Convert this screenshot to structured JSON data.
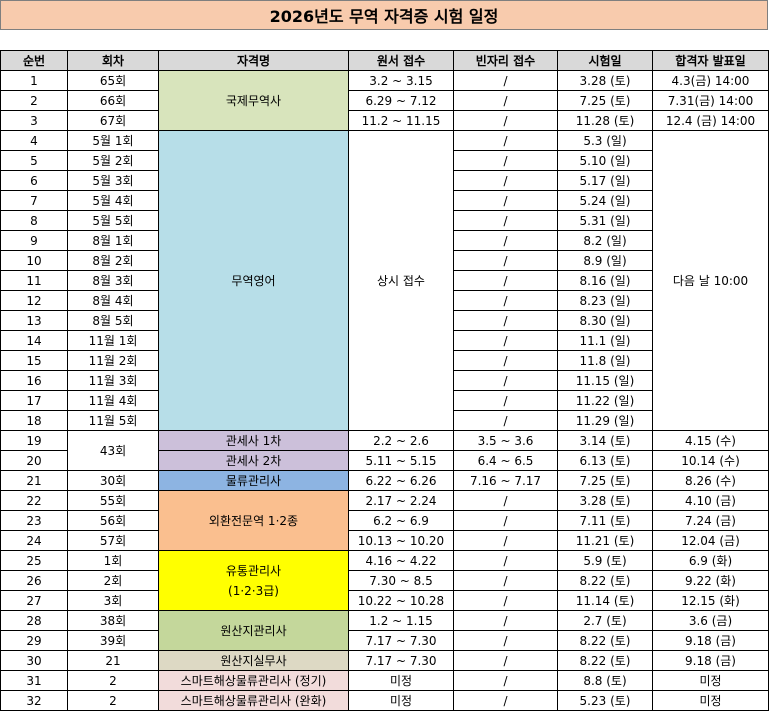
{
  "title": "2026년도 무역 자격증 시험 일정",
  "headers": [
    "순번",
    "회차",
    "자격명",
    "원서 접수",
    "빈자리 접수",
    "시험일",
    "합격자 발표일"
  ],
  "colors": {
    "title_bg": "#f8cbad",
    "header_bg": "#d9d9d9",
    "intl": "#d8e4bc",
    "english": "#b7dee8",
    "customs": "#ccc0da",
    "logistics": "#8db4e2",
    "fx": "#fabf8f",
    "distribution": "#ffff00",
    "origin": "#c4d79b",
    "origin_practical": "#ddd9c4",
    "smart": "#f2dcdb"
  },
  "rows": [
    {
      "no": "1",
      "round": "65회",
      "apply": "3.2 ~ 3.15",
      "vacancy": "/",
      "exam": "3.28 (토)",
      "result": "4.3(금) 14:00"
    },
    {
      "no": "2",
      "round": "66회",
      "apply": "6.29 ~ 7.12",
      "vacancy": "/",
      "exam": "7.25 (토)",
      "result": "7.31(금) 14:00"
    },
    {
      "no": "3",
      "round": "67회",
      "apply": "11.2 ~ 11.15",
      "vacancy": "/",
      "exam": "11.28 (토)",
      "result": "12.4 (금) 14:00"
    },
    {
      "no": "4",
      "round": "5월 1회",
      "vacancy": "/",
      "exam": "5.3 (일)"
    },
    {
      "no": "5",
      "round": "5월 2회",
      "vacancy": "/",
      "exam": "5.10 (일)"
    },
    {
      "no": "6",
      "round": "5월 3회",
      "vacancy": "/",
      "exam": "5.17 (일)"
    },
    {
      "no": "7",
      "round": "5월 4회",
      "vacancy": "/",
      "exam": "5.24 (일)"
    },
    {
      "no": "8",
      "round": "5월 5회",
      "vacancy": "/",
      "exam": "5.31 (일)"
    },
    {
      "no": "9",
      "round": "8월 1회",
      "vacancy": "/",
      "exam": "8.2 (일)"
    },
    {
      "no": "10",
      "round": "8월 2회",
      "vacancy": "/",
      "exam": "8.9 (일)"
    },
    {
      "no": "11",
      "round": "8월 3회",
      "vacancy": "/",
      "exam": "8.16 (일)"
    },
    {
      "no": "12",
      "round": "8월 4회",
      "vacancy": "/",
      "exam": "8.23 (일)"
    },
    {
      "no": "13",
      "round": "8월 5회",
      "vacancy": "/",
      "exam": "8.30 (일)"
    },
    {
      "no": "14",
      "round": "11월 1회",
      "vacancy": "/",
      "exam": "11.1 (일)"
    },
    {
      "no": "15",
      "round": "11월 2회",
      "vacancy": "/",
      "exam": "11.8 (일)"
    },
    {
      "no": "16",
      "round": "11월 3회",
      "vacancy": "/",
      "exam": "11.15 (일)"
    },
    {
      "no": "17",
      "round": "11월 4회",
      "vacancy": "/",
      "exam": "11.22 (일)"
    },
    {
      "no": "18",
      "round": "11월 5회",
      "vacancy": "/",
      "exam": "11.29 (일)"
    },
    {
      "no": "19",
      "apply": "2.2 ~ 2.6",
      "vacancy": "3.5 ~ 3.6",
      "exam": "3.14 (토)",
      "result": "4.15 (수)"
    },
    {
      "no": "20",
      "apply": "5.11 ~ 5.15",
      "vacancy": "6.4 ~ 6.5",
      "exam": "6.13 (토)",
      "result": "10.14 (수)"
    },
    {
      "no": "21",
      "round": "30회",
      "apply": "6.22 ~ 6.26",
      "vacancy": "7.16 ~ 7.17",
      "exam": "7.25 (토)",
      "result": "8.26 (수)"
    },
    {
      "no": "22",
      "round": "55회",
      "apply": "2.17 ~ 2.24",
      "vacancy": "/",
      "exam": "3.28 (토)",
      "result": "4.10 (금)"
    },
    {
      "no": "23",
      "round": "56회",
      "apply": "6.2 ~ 6.9",
      "vacancy": "/",
      "exam": "7.11 (토)",
      "result": "7.24 (금)"
    },
    {
      "no": "24",
      "round": "57회",
      "apply": "10.13 ~ 10.20",
      "vacancy": "/",
      "exam": "11.21 (토)",
      "result": "12.04 (금)"
    },
    {
      "no": "25",
      "round": "1회",
      "apply": "4.16 ~ 4.22",
      "vacancy": "/",
      "exam": "5.9 (토)",
      "result": "6.9 (화)"
    },
    {
      "no": "26",
      "round": "2회",
      "apply": "7.30 ~ 8.5",
      "vacancy": "/",
      "exam": "8.22 (토)",
      "result": "9.22 (화)"
    },
    {
      "no": "27",
      "round": "3회",
      "apply": "10.22 ~ 10.28",
      "vacancy": "/",
      "exam": "11.14 (토)",
      "result": "12.15 (화)"
    },
    {
      "no": "28",
      "round": "38회",
      "apply": "1.2 ~ 1.15",
      "vacancy": "/",
      "exam": "2.7 (토)",
      "result": "3.6 (금)"
    },
    {
      "no": "29",
      "round": "39회",
      "apply": "7.17 ~ 7.30",
      "vacancy": "/",
      "exam": "8.22 (토)",
      "result": "9.18 (금)"
    },
    {
      "no": "30",
      "round": "21",
      "name": "원산지실무사",
      "apply": "7.17 ~ 7.30",
      "vacancy": "/",
      "exam": "8.22 (토)",
      "result": "9.18 (금)"
    },
    {
      "no": "31",
      "round": "2",
      "name": "스마트해상물류관리사 (정기)",
      "apply": "미정",
      "vacancy": "/",
      "exam": "8.8 (토)",
      "result": "미정"
    },
    {
      "no": "32",
      "round": "2",
      "name": "스마트해상물류관리사 (완화)",
      "apply": "미정",
      "vacancy": "/",
      "exam": "5.23 (토)",
      "result": "미정"
    }
  ],
  "groups": {
    "intl_name": "국제무역사",
    "english_name": "무역영어",
    "english_apply": "상시 접수",
    "english_result": "다음 날 10:00",
    "customs_round": "43회",
    "customs1_name": "관세사 1차",
    "customs2_name": "관세사 2차",
    "logistics_name": "물류관리사",
    "fx_name": "외환전문역 1·2종",
    "dist_name": "유통관리사",
    "dist_sub": "(1·2·3급)",
    "origin_name": "원산지관리사"
  }
}
